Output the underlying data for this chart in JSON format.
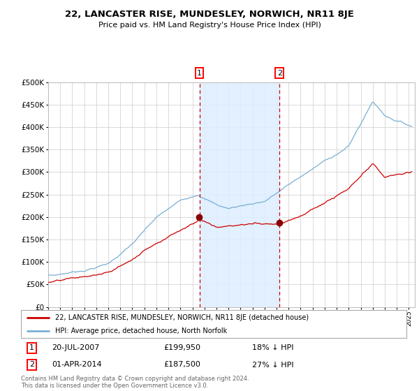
{
  "title": "22, LANCASTER RISE, MUNDESLEY, NORWICH, NR11 8JE",
  "subtitle": "Price paid vs. HM Land Registry's House Price Index (HPI)",
  "legend_line1": "22, LANCASTER RISE, MUNDESLEY, NORWICH, NR11 8JE (detached house)",
  "legend_line2": "HPI: Average price, detached house, North Norfolk",
  "transaction1_date": "20-JUL-2007",
  "transaction1_price": 199950,
  "transaction1_pct": "18% ↓ HPI",
  "transaction2_date": "01-APR-2014",
  "transaction2_price": 187500,
  "transaction2_pct": "27% ↓ HPI",
  "footer": "Contains HM Land Registry data © Crown copyright and database right 2024.\nThis data is licensed under the Open Government Licence v3.0.",
  "hpi_color": "#7aafd4",
  "price_color": "#cc0000",
  "marker_color": "#880000",
  "vline_color": "#cc0000",
  "shade_color": "#ddeeff",
  "ylim": [
    0,
    500000
  ],
  "transaction1_x": 2007.58,
  "transaction2_x": 2014.25
}
